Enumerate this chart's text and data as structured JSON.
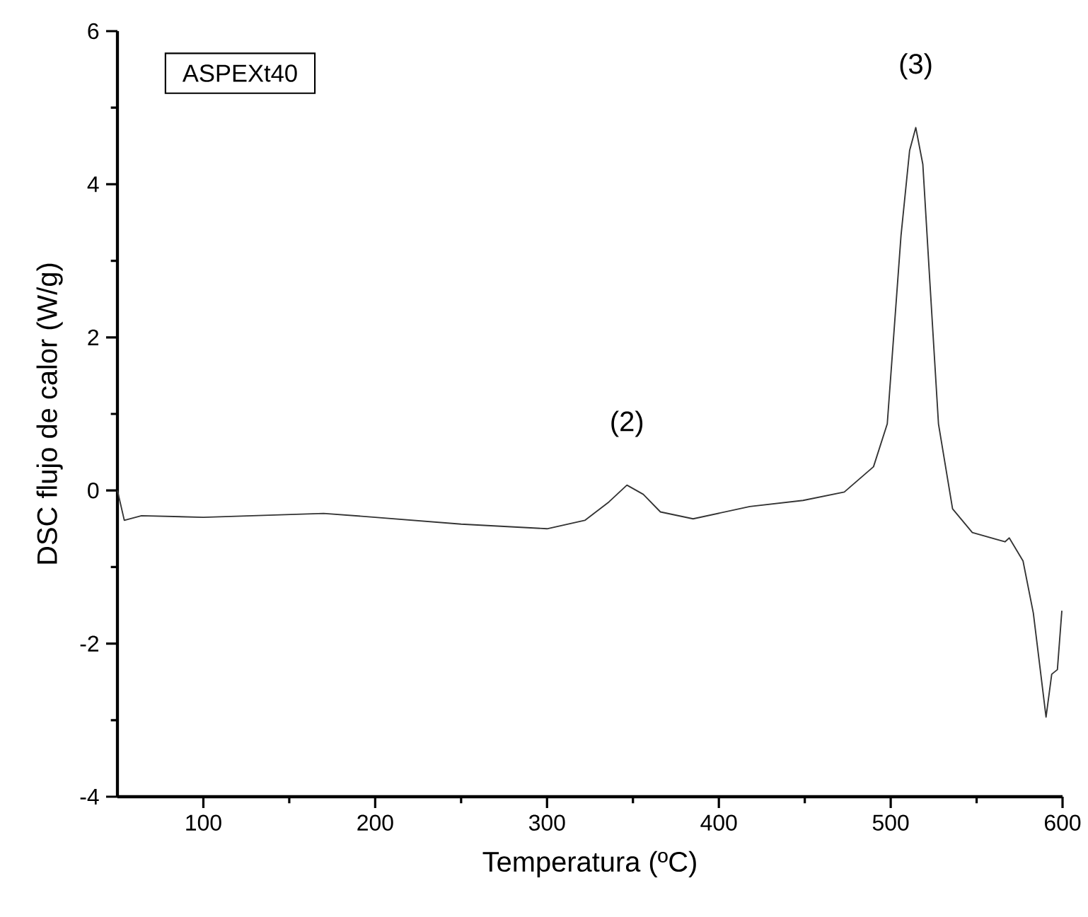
{
  "chart_data": {
    "type": "line",
    "xlabel": "Temperatura (ºC)",
    "ylabel": "DSC flujo de calor (W/g)",
    "x": [
      50,
      54,
      64,
      100,
      170,
      200,
      250,
      300,
      322,
      336,
      346.5,
      356,
      366,
      385,
      418,
      449,
      473,
      490,
      498,
      506,
      511,
      514.6,
      518.7,
      522.8,
      527.8,
      536,
      547.5,
      566.5,
      569,
      577,
      583,
      590.4,
      593.7,
      597,
      599.6
    ],
    "series": [
      {
        "color": "#333333",
        "values": [
          0,
          -0.39,
          -0.33,
          -0.35,
          -0.3,
          -0.35,
          -0.44,
          -0.5,
          -0.39,
          -0.15,
          0.07,
          -0.05,
          -0.28,
          -0.37,
          -0.21,
          -0.13,
          -0.02,
          0.31,
          0.87,
          3.33,
          4.44,
          4.74,
          4.26,
          2.72,
          0.87,
          -0.24,
          -0.55,
          -0.67,
          -0.62,
          -0.92,
          -1.6,
          -2.96,
          -2.4,
          -2.34,
          -1.57
        ]
      }
    ],
    "xlim": [
      50,
      600
    ],
    "xticks": [
      100,
      200,
      300,
      400,
      500,
      600
    ],
    "ylim": [
      -4,
      6
    ],
    "yticks": [
      -4,
      -2,
      0,
      2,
      4,
      6
    ],
    "annotations": [
      "ASPEXt40",
      {
        "text": "(2)",
        "x": 346.5,
        "y": 0.07
      },
      {
        "text": "(3)",
        "x": 514.6,
        "y": 4.74
      }
    ],
    "grid": false,
    "legend": false
  }
}
